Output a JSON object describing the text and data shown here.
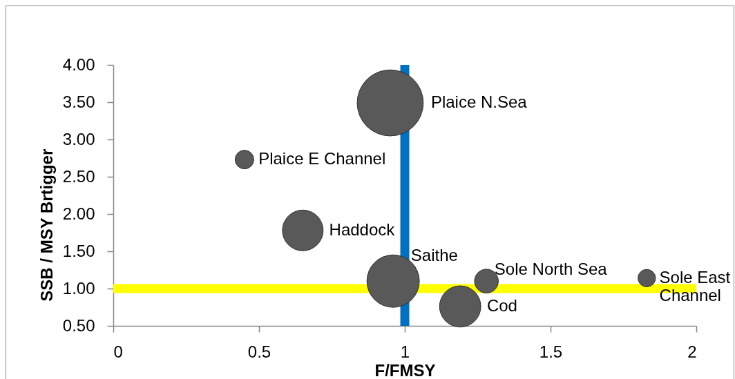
{
  "chart_data": {
    "type": "bubble",
    "xlabel": "F/FMSY",
    "ylabel": "SSB / MSY Brtigger",
    "xlim": [
      0,
      2
    ],
    "xticks": [
      0,
      0.5,
      1,
      1.5,
      2
    ],
    "ylim": [
      0.5,
      4
    ],
    "yticks": [
      {
        "value": 0.5,
        "label": "0.50"
      },
      {
        "value": 1,
        "label": "1.00"
      },
      {
        "value": 1.5,
        "label": "1.50"
      },
      {
        "value": 2,
        "label": "2.00"
      },
      {
        "value": 2.5,
        "label": "2.50"
      },
      {
        "value": 3,
        "label": "3.00"
      },
      {
        "value": 3.5,
        "label": "3.50"
      },
      {
        "value": 4,
        "label": "4.00"
      }
    ],
    "ref_lines": [
      {
        "axis": "y",
        "value": 1,
        "color": "#ffff00"
      },
      {
        "axis": "x",
        "value": 1,
        "color": "#0070c0"
      }
    ],
    "series": [
      {
        "name": "Plaice N.Sea",
        "color": "#595959",
        "x": [
          0.95
        ],
        "values": [
          3.49
        ],
        "sizes": [
          1
        ]
      },
      {
        "name": "Plaice E Channel",
        "color": "#595959",
        "x": [
          0.45
        ],
        "values": [
          2.73
        ],
        "sizes": [
          0.08
        ]
      },
      {
        "name": "Haddock",
        "color": "#595959",
        "x": [
          0.65
        ],
        "values": [
          1.78
        ],
        "sizes": [
          0.38
        ]
      },
      {
        "name": "Saithe",
        "color": "#595959",
        "x": [
          0.96
        ],
        "values": [
          1.1
        ],
        "sizes": [
          0.63
        ]
      },
      {
        "name": "Cod",
        "color": "#595959",
        "x": [
          1.19
        ],
        "values": [
          0.76
        ],
        "sizes": [
          0.39
        ]
      },
      {
        "name": "Sole North Sea",
        "color": "#595959",
        "x": [
          1.28
        ],
        "values": [
          1.1
        ],
        "sizes": [
          0.13
        ]
      },
      {
        "name": "Sole East Channel",
        "color": "#595959",
        "x": [
          1.83
        ],
        "values": [
          1.14
        ],
        "sizes": [
          0.07
        ]
      }
    ]
  }
}
